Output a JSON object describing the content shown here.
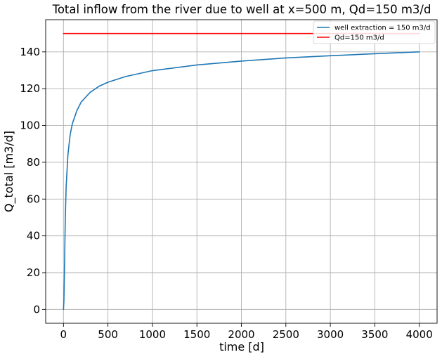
{
  "chart_data": {
    "type": "line",
    "title": "Total inflow from the river due to well at x=500 m, Qd=150 m3/d",
    "xlabel": "time [d]",
    "ylabel": "Q_total [m3/d]",
    "xlim": [
      -200,
      4200
    ],
    "ylim": [
      -7.5,
      157.5
    ],
    "xticks": [
      0,
      500,
      1000,
      1500,
      2000,
      2500,
      3000,
      3500,
      4000
    ],
    "yticks": [
      0,
      20,
      40,
      60,
      80,
      100,
      120,
      140
    ],
    "grid": true,
    "legend_position": "top-right",
    "series": [
      {
        "name": "well extraction = 150 m3/d",
        "color": "#1f77b4",
        "x": [
          0,
          5,
          10,
          20,
          30,
          50,
          75,
          100,
          150,
          200,
          300,
          400,
          500,
          700,
          1000,
          1500,
          2000,
          2500,
          3000,
          3500,
          4000
        ],
        "y": [
          0,
          4.6,
          17.6,
          48.3,
          66.5,
          84.1,
          94.9,
          101.0,
          108.0,
          112.8,
          118.0,
          121.3,
          123.5,
          126.6,
          129.8,
          132.9,
          135.0,
          136.7,
          137.9,
          139.0,
          140.0
        ]
      },
      {
        "name": "Qd=150 m3/d",
        "color": "#ff0000",
        "x": [
          0,
          4000
        ],
        "y": [
          150,
          150
        ]
      }
    ]
  }
}
